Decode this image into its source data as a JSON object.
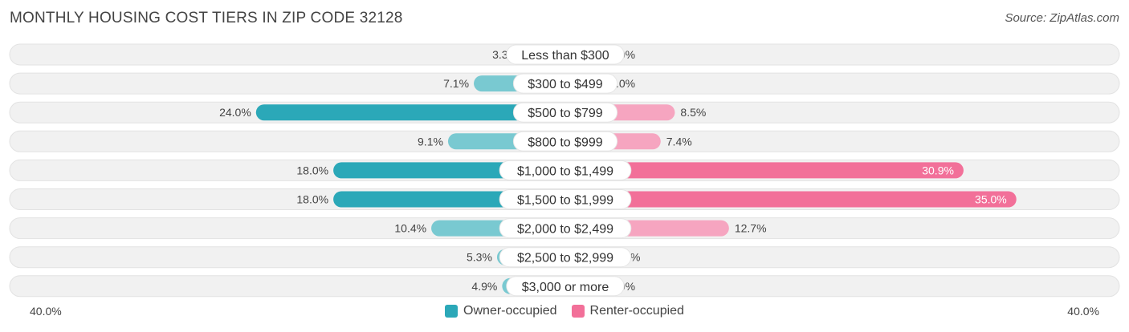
{
  "header": {
    "title": "MONTHLY HOUSING COST TIERS IN ZIP CODE 32128",
    "source": "Source: ZipAtlas.com"
  },
  "colors": {
    "owner": "#2ba8b8",
    "owner_light": "#79c9d1",
    "renter": "#f27099",
    "renter_light": "#f6a5c0",
    "row_bg": "#f1f1f1"
  },
  "chart_data": {
    "type": "bar",
    "orientation": "diverging-horizontal",
    "title": "MONTHLY HOUSING COST TIERS IN ZIP CODE 32128",
    "categories": [
      "Less than $300",
      "$300 to $499",
      "$500 to $799",
      "$800 to $999",
      "$1,000 to $1,499",
      "$1,500 to $1,999",
      "$2,000 to $2,499",
      "$2,500 to $2,999",
      "$3,000 or more"
    ],
    "series": [
      {
        "name": "Owner-occupied",
        "values": [
          3.3,
          7.1,
          24.0,
          9.1,
          18.0,
          18.0,
          10.4,
          5.3,
          4.9
        ]
      },
      {
        "name": "Renter-occupied",
        "values": [
          0.0,
          0.0,
          8.5,
          7.4,
          30.9,
          35.0,
          12.7,
          3.4,
          0.0
        ]
      }
    ],
    "value_labels": {
      "owner": [
        "3.3%",
        "7.1%",
        "24.0%",
        "9.1%",
        "18.0%",
        "18.0%",
        "10.4%",
        "5.3%",
        "4.9%"
      ],
      "renter": [
        "0.0%",
        "0.0%",
        "8.5%",
        "7.4%",
        "30.9%",
        "35.0%",
        "12.7%",
        "3.4%",
        "0.0%"
      ]
    },
    "xlim": [
      -40,
      40
    ],
    "axis_labels": {
      "left": "40.0%",
      "right": "40.0%"
    },
    "legend": {
      "position": "bottom-center",
      "entries": [
        "Owner-occupied",
        "Renter-occupied"
      ]
    },
    "grid": false
  }
}
